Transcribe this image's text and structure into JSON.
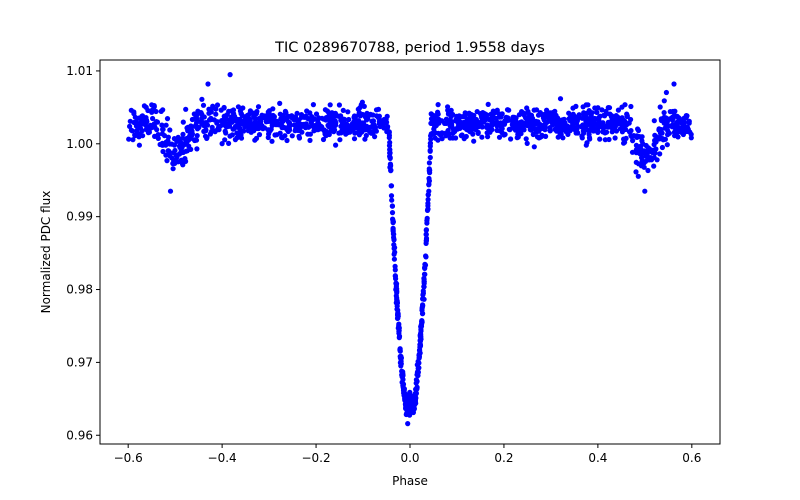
{
  "chart_data": {
    "type": "scatter",
    "title": "TIC 0289670788, period 1.9558 days",
    "xlabel": "Phase",
    "ylabel": "Normalized PDC flux",
    "xlim": [
      -0.66,
      0.66
    ],
    "ylim": [
      0.9588,
      1.0115
    ],
    "xticks": [
      -0.6,
      -0.4,
      -0.2,
      0.0,
      0.2,
      0.4,
      0.6
    ],
    "xtick_labels": [
      "−0.6",
      "−0.4",
      "−0.2",
      "0.0",
      "0.2",
      "0.4",
      "0.6"
    ],
    "yticks": [
      0.96,
      0.97,
      0.98,
      0.99,
      1.0,
      1.01
    ],
    "ytick_labels": [
      "0.96",
      "0.97",
      "0.98",
      "0.99",
      "1.00",
      "1.01"
    ],
    "marker_color": "#0000ff",
    "grid": false,
    "series": [
      {
        "name": "PDC flux",
        "x_range": [
          -0.6,
          0.6
        ],
        "baseline": 1.0028,
        "scatter": 0.0018,
        "primary_eclipse": {
          "center": 0.0,
          "depth": 0.0385,
          "half_width": 0.045,
          "min_flux": 0.9605
        },
        "secondary_eclipse": {
          "centers": [
            -0.5,
            0.5
          ],
          "depth": 0.004,
          "half_width": 0.05,
          "min_flux": 0.9935
        },
        "outliers": [
          {
            "x": -0.383,
            "y": 1.0095
          },
          {
            "x": -0.43,
            "y": 1.0082
          },
          {
            "x": 0.562,
            "y": 1.0082
          },
          {
            "x": -0.51,
            "y": 0.9935
          },
          {
            "x": 0.5,
            "y": 0.9935
          }
        ]
      }
    ]
  }
}
